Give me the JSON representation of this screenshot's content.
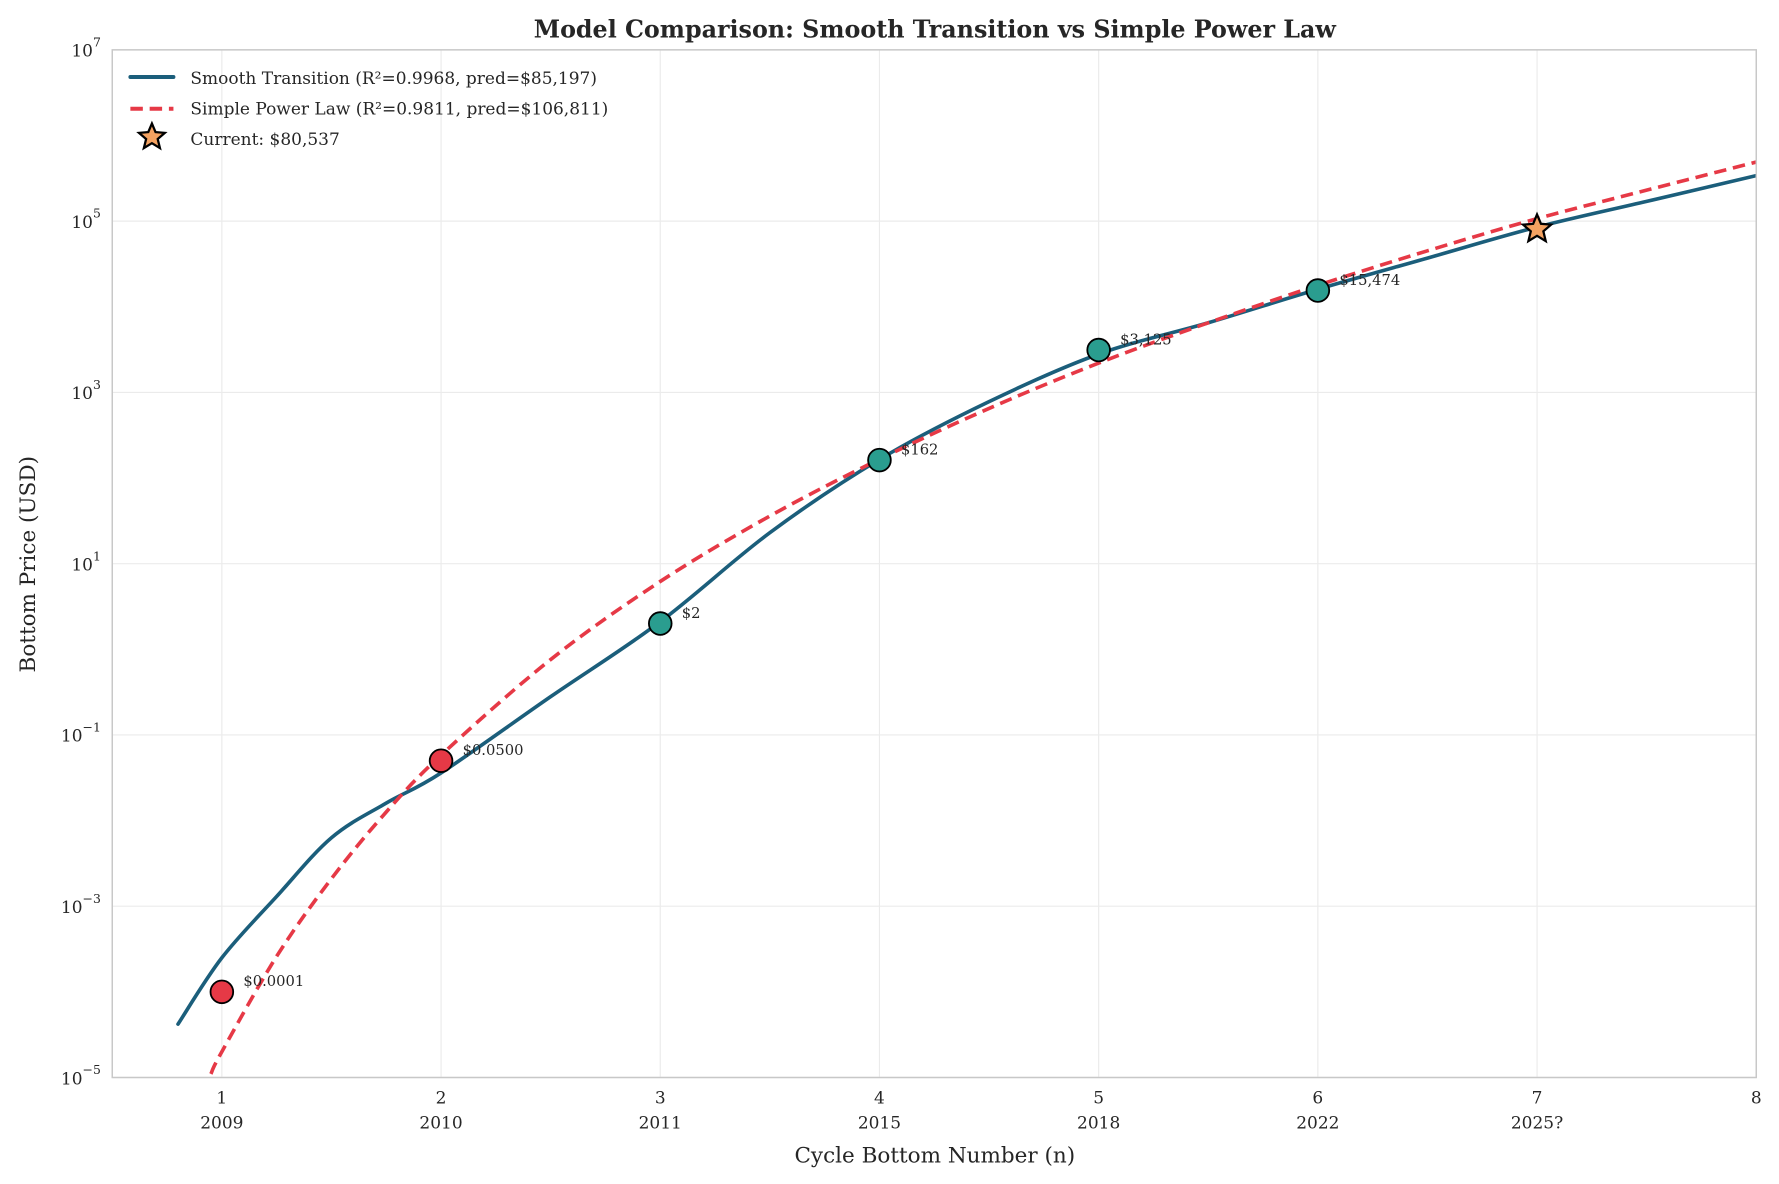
{
  "chart_data": {
    "type": "line",
    "title": "Model Comparison: Smooth Transition vs Simple Power Law",
    "xlabel": "Cycle Bottom Number (n)",
    "ylabel": "Bottom Price (USD)",
    "xlim": [
      0.5,
      8
    ],
    "ylim": [
      1e-05,
      10000000.0
    ],
    "yscale": "log",
    "grid": true,
    "legend_position": "top-left",
    "x_ticks": [
      {
        "n": 1,
        "label": "1",
        "year": "2009"
      },
      {
        "n": 2,
        "label": "2",
        "year": "2010"
      },
      {
        "n": 3,
        "label": "3",
        "year": "2011"
      },
      {
        "n": 4,
        "label": "4",
        "year": "2015"
      },
      {
        "n": 5,
        "label": "5",
        "year": "2018"
      },
      {
        "n": 6,
        "label": "6",
        "year": "2022"
      },
      {
        "n": 7,
        "label": "7",
        "year": "2025?"
      },
      {
        "n": 8,
        "label": "8",
        "year": ""
      }
    ],
    "y_ticks": [
      {
        "value": 1e-05,
        "base": "10",
        "exp": "−5"
      },
      {
        "value": 0.001,
        "base": "10",
        "exp": "−3"
      },
      {
        "value": 0.1,
        "base": "10",
        "exp": "−1"
      },
      {
        "value": 10.0,
        "base": "10",
        "exp": "1"
      },
      {
        "value": 1000.0,
        "base": "10",
        "exp": "3"
      },
      {
        "value": 100000.0,
        "base": "10",
        "exp": "5"
      },
      {
        "value": 10000000.0,
        "base": "10",
        "exp": "7"
      }
    ],
    "series": [
      {
        "name": "Smooth Transition (R²=0.9968, pred=$85,197)",
        "color": "#1b5e7b",
        "style": "solid",
        "x": [
          0.8,
          1,
          1.25,
          1.5,
          1.75,
          2,
          2.5,
          3,
          3.5,
          4,
          4.5,
          5,
          5.5,
          6,
          6.5,
          7,
          7.5,
          8
        ],
        "y": [
          4.2e-05,
          0.00025,
          0.0013,
          0.0063,
          0.016,
          0.036,
          0.28,
          2.1,
          23,
          165,
          780,
          2800,
          6500,
          16000,
          37000,
          85197,
          170000,
          340000
        ]
      },
      {
        "name": "Simple Power Law (R²=0.9811, pred=$106,811)",
        "color": "#e63946",
        "style": "dashed",
        "x": [
          0.95,
          1,
          1.25,
          1.5,
          1.75,
          2,
          2.5,
          3,
          3.5,
          4,
          4.5,
          5,
          5.5,
          6,
          6.5,
          7,
          7.5,
          8
        ],
        "y": [
          1.1e-05,
          2e-05,
          0.00026,
          0.0021,
          0.0126,
          0.058,
          0.76,
          6.2,
          36,
          166,
          650,
          2200,
          6500,
          17800,
          45000,
          106811,
          230000,
          490000
        ]
      }
    ],
    "points": [
      {
        "n": 1,
        "price": 0.0001,
        "label": "$0.0001",
        "color": "#e63946"
      },
      {
        "n": 2,
        "price": 0.05,
        "label": "$0.0500",
        "color": "#e63946"
      },
      {
        "n": 3,
        "price": 2,
        "label": "$2",
        "color": "#2a9d8f"
      },
      {
        "n": 4,
        "price": 162,
        "label": "$162",
        "color": "#2a9d8f"
      },
      {
        "n": 5,
        "price": 3125,
        "label": "$3,125",
        "color": "#2a9d8f"
      },
      {
        "n": 6,
        "price": 15474,
        "label": "$15,474",
        "color": "#2a9d8f"
      }
    ],
    "current": {
      "n": 7,
      "price": 80537,
      "name": "Current: $80,537",
      "color": "#f4a261"
    }
  }
}
